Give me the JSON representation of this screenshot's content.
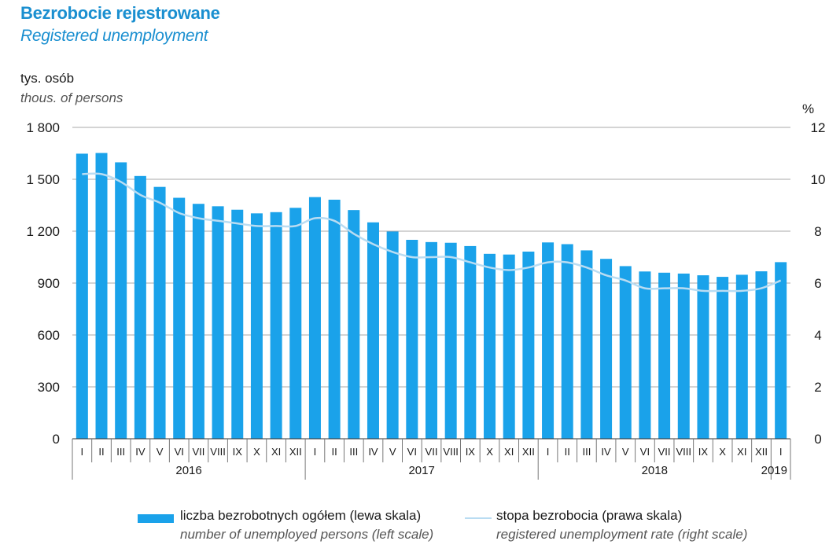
{
  "header": {
    "title": "Bezrobocie rejestrowane",
    "subtitle": "Registered unemployment"
  },
  "axes": {
    "left_unit": "tys. osób",
    "left_unit_en": "thous. of persons",
    "right_unit": "%"
  },
  "legend": {
    "bars_label": "liczba bezrobotnych ogółem (lewa skala)",
    "bars_label_en": "number of unemployed persons (left scale)",
    "line_label": "stopa bezrobocia (prawa skala)",
    "line_label_en": "registered unemployment rate (right scale)"
  },
  "colors": {
    "bars": "#1aa2ea",
    "line": "#b9dcf2"
  },
  "chart_data": {
    "type": "bar",
    "title": "Bezrobocie rejestrowane",
    "subtitle": "Registered unemployment",
    "categories": [
      "I",
      "II",
      "III",
      "IV",
      "V",
      "VI",
      "VII",
      "VIII",
      "IX",
      "X",
      "XI",
      "XII",
      "I",
      "II",
      "III",
      "IV",
      "V",
      "VI",
      "VII",
      "VIII",
      "IX",
      "X",
      "XI",
      "XII",
      "I",
      "II",
      "III",
      "IV",
      "V",
      "VI",
      "VII",
      "VIII",
      "IX",
      "X",
      "XI",
      "XII",
      "I"
    ],
    "years": [
      {
        "label": "2016",
        "count": 12
      },
      {
        "label": "2017",
        "count": 12
      },
      {
        "label": "2018",
        "count": 12
      },
      {
        "label": "2019",
        "count": 1
      }
    ],
    "series": [
      {
        "name": "liczba bezrobotnych ogółem (lewa skala)",
        "axis": "left",
        "type": "bar",
        "values": [
          1648,
          1652,
          1598,
          1519,
          1456,
          1393,
          1358,
          1344,
          1324,
          1303,
          1310,
          1335,
          1397,
          1382,
          1322,
          1251,
          1198,
          1150,
          1137,
          1133,
          1114,
          1069,
          1065,
          1082,
          1135,
          1125,
          1089,
          1040,
          998,
          967,
          960,
          955,
          945,
          936,
          948,
          968,
          1021
        ]
      },
      {
        "name": "stopa bezrobocia (prawa skala)",
        "axis": "right",
        "type": "line",
        "values": [
          10.2,
          10.2,
          9.9,
          9.4,
          9.1,
          8.7,
          8.5,
          8.4,
          8.3,
          8.2,
          8.2,
          8.2,
          8.5,
          8.4,
          7.9,
          7.5,
          7.2,
          7.0,
          7.0,
          7.0,
          6.8,
          6.6,
          6.5,
          6.6,
          6.8,
          6.8,
          6.6,
          6.3,
          6.1,
          5.8,
          5.8,
          5.8,
          5.7,
          5.7,
          5.7,
          5.8,
          6.1
        ]
      }
    ],
    "left_axis": {
      "label": "tys. osób",
      "ticks": [
        "0",
        "300",
        "600",
        "900",
        "1 200",
        "1 500",
        "1 800"
      ],
      "ylim": [
        0,
        1800
      ]
    },
    "right_axis": {
      "label": "%",
      "ticks": [
        "0",
        "2",
        "4",
        "6",
        "8",
        "10",
        "12"
      ],
      "ylim": [
        0,
        12
      ]
    },
    "grid": true,
    "legend_position": "bottom"
  }
}
